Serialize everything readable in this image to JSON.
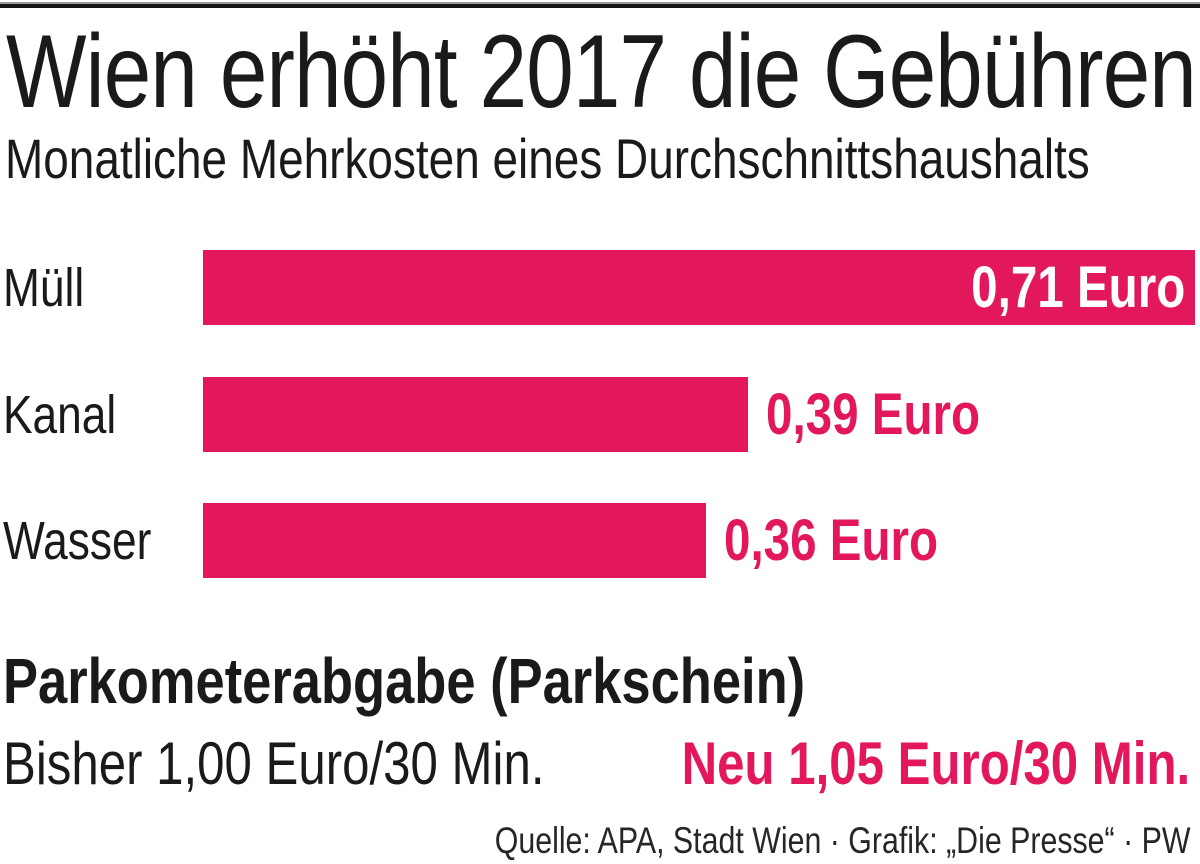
{
  "chart_data": {
    "type": "bar",
    "orientation": "horizontal",
    "title": "Wien erhöht 2017 die Gebühren",
    "subtitle": "Monatliche Mehrkosten eines Durchschnittshaushalts",
    "categories": [
      "Müll",
      "Kanal",
      "Wasser"
    ],
    "values": [
      0.71,
      0.39,
      0.36
    ],
    "value_labels": [
      "0,71 Euro",
      "0,39 Euro",
      "0,36 Euro"
    ],
    "unit": "Euro",
    "xlim": [
      0,
      0.71
    ],
    "grid": false,
    "legend": false,
    "bar_color": "#e3175c"
  },
  "parkometer": {
    "heading": "Parkometerabgabe (Parkschein)",
    "old_label": "Bisher 1,00 Euro/30 Min.",
    "new_label": "Neu 1,05 Euro/30 Min."
  },
  "footer": {
    "source": "Quelle: APA, Stadt Wien · Grafik: „Die Presse“ · PW"
  },
  "colors": {
    "accent_pink": "#e3175c",
    "text_black": "#1a1a1a"
  }
}
